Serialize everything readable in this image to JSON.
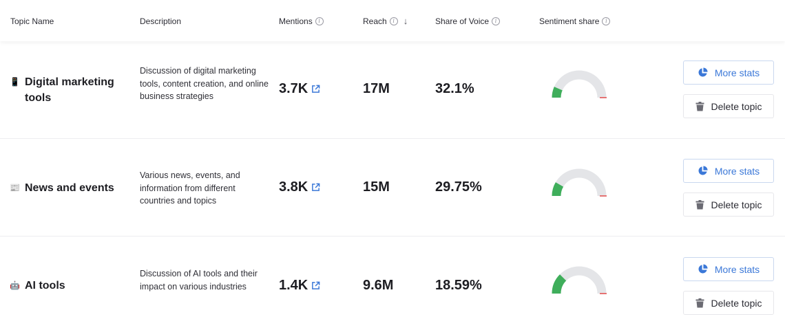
{
  "header": {
    "topic_name": "Topic Name",
    "description": "Description",
    "mentions": "Mentions",
    "reach": "Reach",
    "share_of_voice": "Share of Voice",
    "sentiment_share": "Sentiment share"
  },
  "colors": {
    "accent": "#3b78d8",
    "positive": "#3fae5b",
    "neutral": "#e4e5e8",
    "negative": "#e25252"
  },
  "icons": [
    "info-icon",
    "sort-down-icon",
    "external-link-icon",
    "pie-chart-icon",
    "trash-icon"
  ],
  "rows": [
    {
      "emoji": "📱",
      "name": "Digital marketing tools",
      "description": "Discussion of digital marketing tools, content creation, and online business strategies",
      "mentions": "3.7K",
      "reach": "17M",
      "share_of_voice": "32.1%",
      "more_stats_label": "More stats",
      "delete_label": "Delete topic"
    },
    {
      "emoji": "📰",
      "name": "News and events",
      "description": "Various news, events, and information from different countries and topics",
      "mentions": "3.8K",
      "reach": "15M",
      "share_of_voice": "29.75%",
      "more_stats_label": "More stats",
      "delete_label": "Delete topic"
    },
    {
      "emoji": "🤖",
      "name": "AI tools",
      "description": "Discussion of AI tools and their impact on various industries",
      "mentions": "1.4K",
      "reach": "9.6M",
      "share_of_voice": "18.59%",
      "more_stats_label": "More stats",
      "delete_label": "Delete topic"
    }
  ]
}
